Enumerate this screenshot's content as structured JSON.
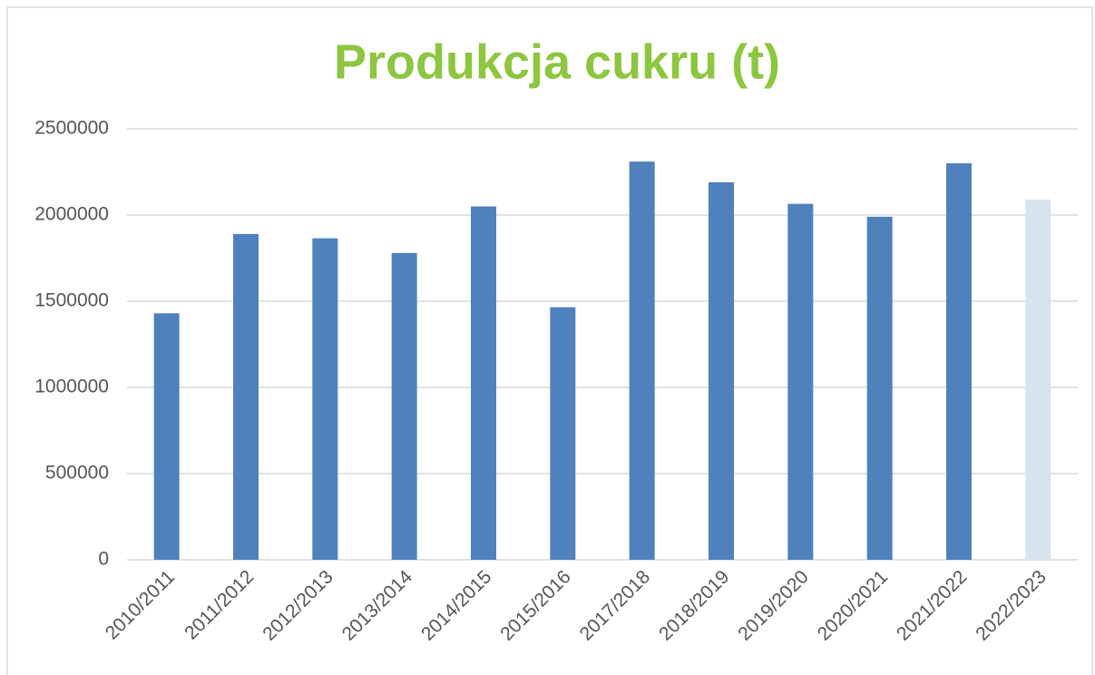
{
  "chart_data": {
    "type": "bar",
    "title": "Produkcja cukru (t)",
    "categories": [
      "2010/2011",
      "2011/2012",
      "2012/2013",
      "2013/2014",
      "2014/2015",
      "2015/2016",
      "2017/2018",
      "2018/2019",
      "2019/2020",
      "2020/2021",
      "2021/2022",
      "2022/2023"
    ],
    "values": [
      1430000,
      1890000,
      1865000,
      1780000,
      2050000,
      1465000,
      2310000,
      2190000,
      2065000,
      1990000,
      2300000,
      2090000
    ],
    "colors": [
      "#4f81bd",
      "#4f81bd",
      "#4f81bd",
      "#4f81bd",
      "#4f81bd",
      "#4f81bd",
      "#4f81bd",
      "#4f81bd",
      "#4f81bd",
      "#4f81bd",
      "#4f81bd",
      "#d6e4f2"
    ],
    "title_color": "#8dc63f",
    "ylim": [
      0,
      2500000
    ],
    "yticks": [
      0,
      500000,
      1000000,
      1500000,
      2000000,
      2500000
    ],
    "grid": true
  }
}
